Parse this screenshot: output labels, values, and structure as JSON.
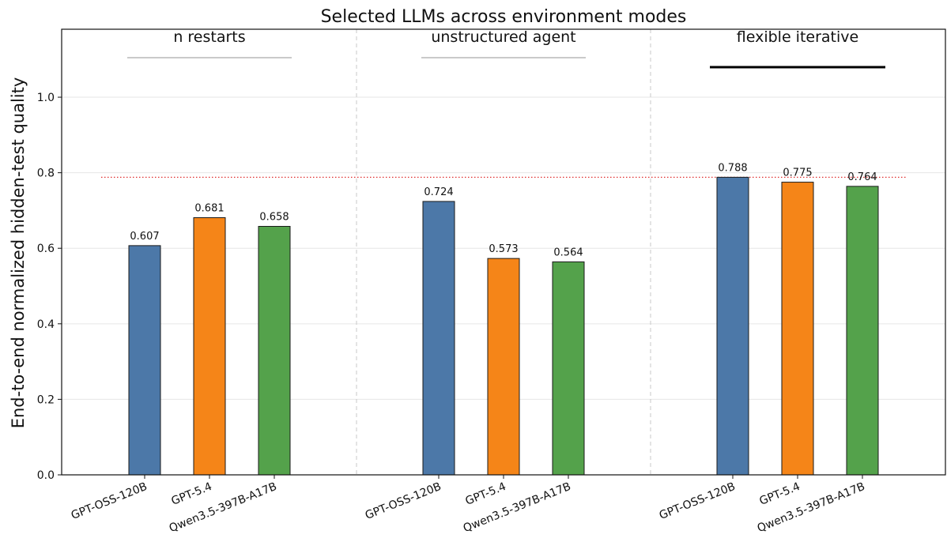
{
  "chart_data": {
    "type": "bar",
    "title": "Selected LLMs across environment modes",
    "ylabel": "End-to-end normalized hidden-test quality",
    "xlabel": "",
    "ylim": [
      0,
      1.18
    ],
    "yticks": [
      "0.0",
      "0.2",
      "0.4",
      "0.6",
      "0.8",
      "1.0"
    ],
    "grid": "horizontal",
    "reference_line": {
      "y": 0.788,
      "color": "#e03030",
      "style": "dotted"
    },
    "groups": [
      {
        "label": "n restarts",
        "highlighted": false,
        "bars": [
          {
            "model": "GPT-OSS-120B",
            "value": 0.607,
            "value_label": "0.607",
            "color": "#4c78a8"
          },
          {
            "model": "GPT-5.4",
            "value": 0.681,
            "value_label": "0.681",
            "color": "#f58518"
          },
          {
            "model": "Qwen3.5-397B-A17B",
            "value": 0.658,
            "value_label": "0.658",
            "color": "#54a24b"
          }
        ]
      },
      {
        "label": "unstructured agent",
        "highlighted": false,
        "bars": [
          {
            "model": "GPT-OSS-120B",
            "value": 0.724,
            "value_label": "0.724",
            "color": "#4c78a8"
          },
          {
            "model": "GPT-5.4",
            "value": 0.573,
            "value_label": "0.573",
            "color": "#f58518"
          },
          {
            "model": "Qwen3.5-397B-A17B",
            "value": 0.564,
            "value_label": "0.564",
            "color": "#54a24b"
          }
        ]
      },
      {
        "label": "flexible iterative",
        "highlighted": true,
        "bars": [
          {
            "model": "GPT-OSS-120B",
            "value": 0.788,
            "value_label": "0.788",
            "color": "#4c78a8"
          },
          {
            "model": "GPT-5.4",
            "value": 0.775,
            "value_label": "0.775",
            "color": "#f58518"
          },
          {
            "model": "Qwen3.5-397B-A17B",
            "value": 0.764,
            "value_label": "0.764",
            "color": "#54a24b"
          }
        ]
      }
    ]
  }
}
